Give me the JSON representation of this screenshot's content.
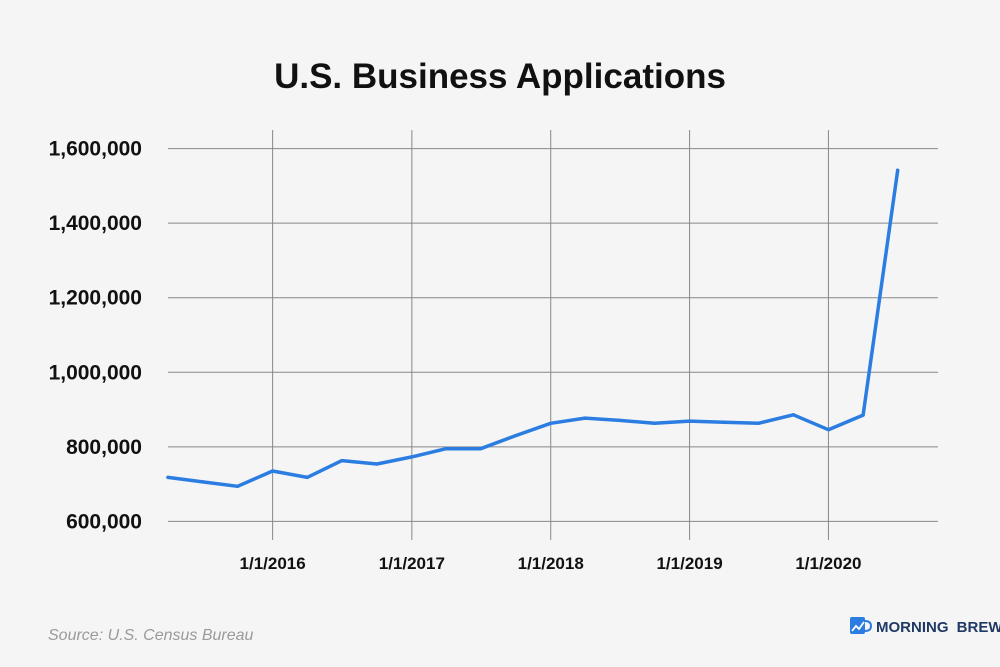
{
  "chart_data": {
    "type": "line",
    "title": "U.S. Business Applications",
    "xlabel": "",
    "ylabel": "",
    "ylim": [
      550000,
      1650000
    ],
    "xlim": [
      "2015-04-01",
      "2020-10-15"
    ],
    "grid": true,
    "y_ticks": [
      600000,
      800000,
      1000000,
      1200000,
      1400000,
      1600000
    ],
    "y_tick_labels": [
      "600,000",
      "800,000",
      "1,000,000",
      "1,200,000",
      "1,400,000",
      "1,600,000"
    ],
    "x_ticks": [
      "2016-01-01",
      "2017-01-01",
      "2018-01-01",
      "2019-01-01",
      "2020-01-01"
    ],
    "x_tick_labels": [
      "1/1/2016",
      "1/1/2017",
      "1/1/2018",
      "1/1/2019",
      "1/1/2020"
    ],
    "series": [
      {
        "color": "#2b7de1",
        "x": [
          "2015-04-01",
          "2015-07-01",
          "2015-10-01",
          "2016-01-01",
          "2016-04-01",
          "2016-07-01",
          "2016-10-01",
          "2017-01-01",
          "2017-04-01",
          "2017-07-01",
          "2017-10-01",
          "2018-01-01",
          "2018-04-01",
          "2018-07-01",
          "2018-10-01",
          "2019-01-01",
          "2019-04-01",
          "2019-07-01",
          "2019-10-01",
          "2020-01-01",
          "2020-04-01",
          "2020-07-01"
        ],
        "values": [
          718000,
          706000,
          694000,
          735000,
          718000,
          763000,
          754000,
          773000,
          795000,
          795000,
          830000,
          863000,
          877000,
          871000,
          863000,
          869000,
          866000,
          863000,
          886000,
          846000,
          885000,
          1542000
        ]
      }
    ]
  },
  "source": "Source: U.S. Census Bureau",
  "brand": {
    "name_part1": "MORNING",
    "name_part2": "BREW",
    "icon": "morning-brew-mug-icon"
  }
}
